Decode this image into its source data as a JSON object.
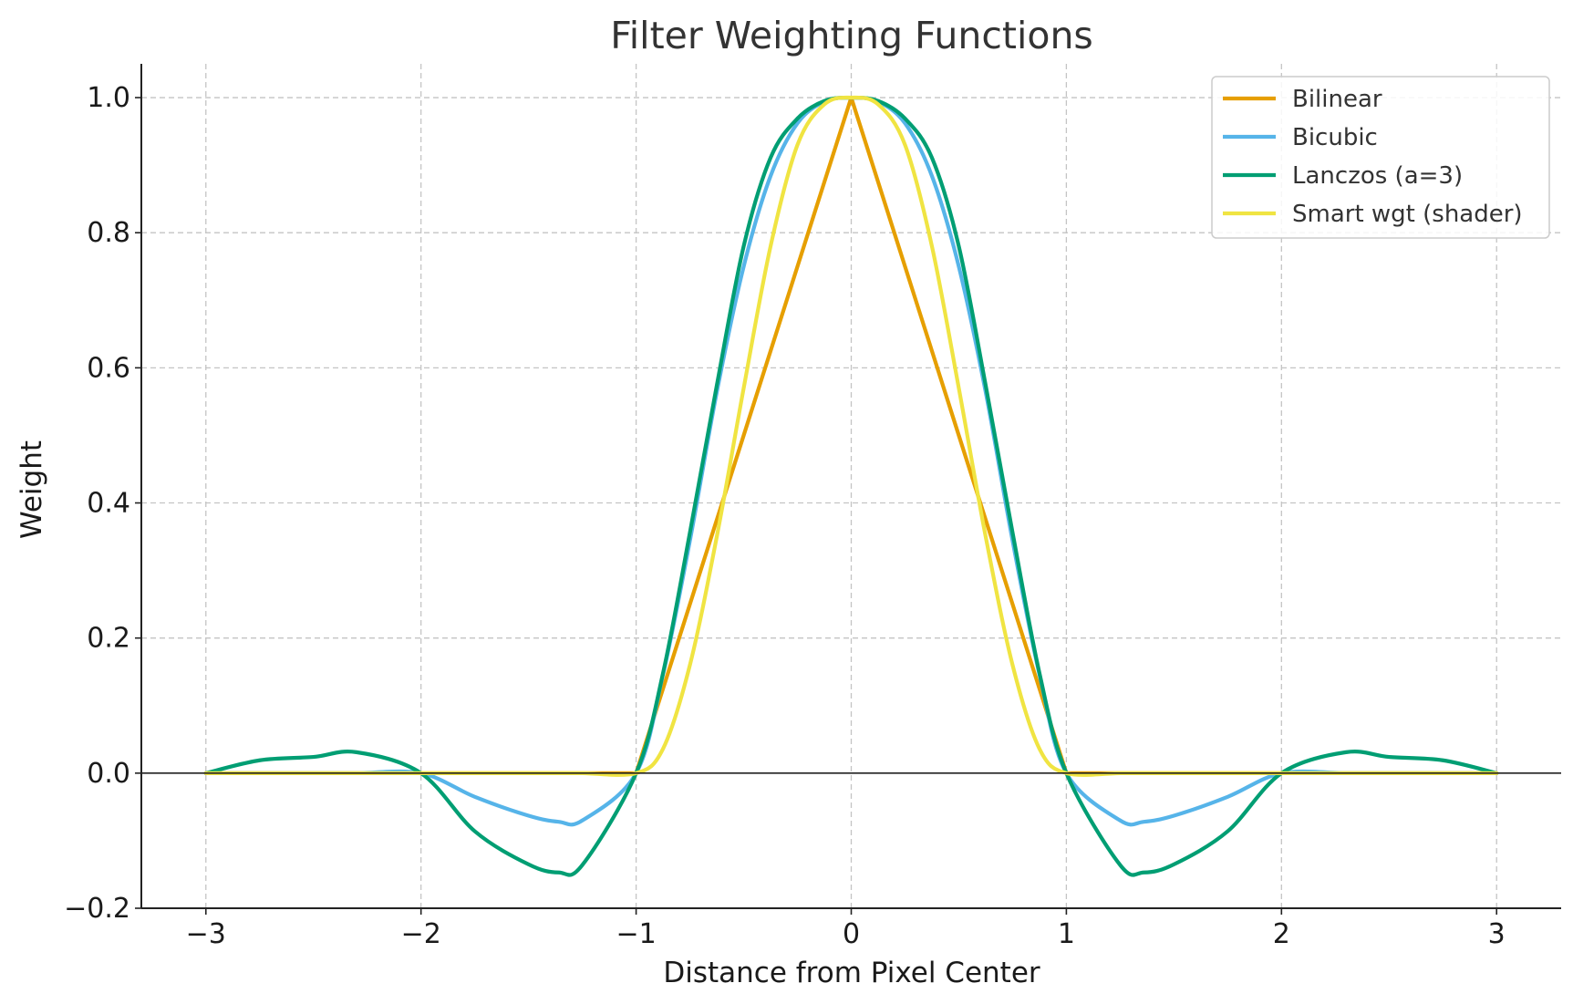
{
  "chart_data": {
    "type": "line",
    "title": "Filter Weighting Functions",
    "xlabel": "Distance from Pixel Center",
    "ylabel": "Weight",
    "xlim": [
      -3.3,
      3.3
    ],
    "ylim": [
      -0.2,
      1.05
    ],
    "grid": true,
    "legend_position": "top-right",
    "xticks": [
      -3,
      -2,
      -1,
      0,
      1,
      2,
      3
    ],
    "xtick_labels": [
      "−3",
      "−2",
      "−1",
      "0",
      "1",
      "2",
      "3"
    ],
    "yticks": [
      -0.2,
      0.0,
      0.2,
      0.4,
      0.6,
      0.8,
      1.0
    ],
    "ytick_labels": [
      "−0.2",
      "0.0",
      "0.2",
      "0.4",
      "0.6",
      "0.8",
      "1.0"
    ],
    "x": [
      -3.0,
      -2.75,
      -2.5,
      -2.3,
      -2.0,
      -1.75,
      -1.5,
      -1.36,
      -1.25,
      -1.0,
      -0.875,
      -0.75,
      -0.625,
      -0.5,
      -0.375,
      -0.25,
      -0.125,
      0.0,
      0.125,
      0.25,
      0.375,
      0.5,
      0.625,
      0.75,
      0.875,
      1.0,
      1.25,
      1.36,
      1.5,
      1.75,
      2.0,
      2.3,
      2.5,
      2.75,
      3.0
    ],
    "series": [
      {
        "name": "Bilinear",
        "color": "#E69F00",
        "values": [
          0,
          0,
          0,
          0,
          0,
          0,
          0,
          0,
          0,
          0,
          0.125,
          0.25,
          0.375,
          0.5,
          0.625,
          0.75,
          0.875,
          1.0,
          0.875,
          0.75,
          0.625,
          0.5,
          0.375,
          0.25,
          0.125,
          0,
          0,
          0,
          0,
          0,
          0,
          0,
          0,
          0,
          0
        ]
      },
      {
        "name": "Bicubic",
        "color": "#56B4E9",
        "values": [
          0,
          0,
          0,
          0,
          0,
          -0.035,
          -0.063,
          -0.072,
          -0.07,
          0,
          0.146,
          0.344,
          0.564,
          0.75,
          0.884,
          0.962,
          0.994,
          1.0,
          0.994,
          0.962,
          0.884,
          0.75,
          0.564,
          0.344,
          0.146,
          0,
          -0.07,
          -0.072,
          -0.063,
          -0.035,
          0,
          0,
          0,
          0,
          0
        ]
      },
      {
        "name": "Lanczos (a=3)",
        "color": "#009E73",
        "values": [
          0,
          0.019,
          0.024,
          0.031,
          0,
          -0.086,
          -0.135,
          -0.147,
          -0.136,
          0,
          0.148,
          0.356,
          0.574,
          0.78,
          0.911,
          0.969,
          0.995,
          1.0,
          0.995,
          0.969,
          0.911,
          0.78,
          0.574,
          0.356,
          0.148,
          0,
          -0.136,
          -0.147,
          -0.135,
          -0.086,
          0,
          0.031,
          0.024,
          0.019,
          0
        ]
      },
      {
        "name": "Smart wgt (shader)",
        "color": "#F0E442",
        "values": [
          0,
          0,
          0,
          0,
          0,
          0,
          0,
          0,
          0,
          0,
          0.036,
          0.16,
          0.35,
          0.57,
          0.78,
          0.93,
          0.99,
          1.0,
          0.99,
          0.93,
          0.78,
          0.57,
          0.35,
          0.16,
          0.036,
          0,
          0,
          0,
          0,
          0,
          0,
          0,
          0,
          0,
          0
        ]
      }
    ]
  }
}
